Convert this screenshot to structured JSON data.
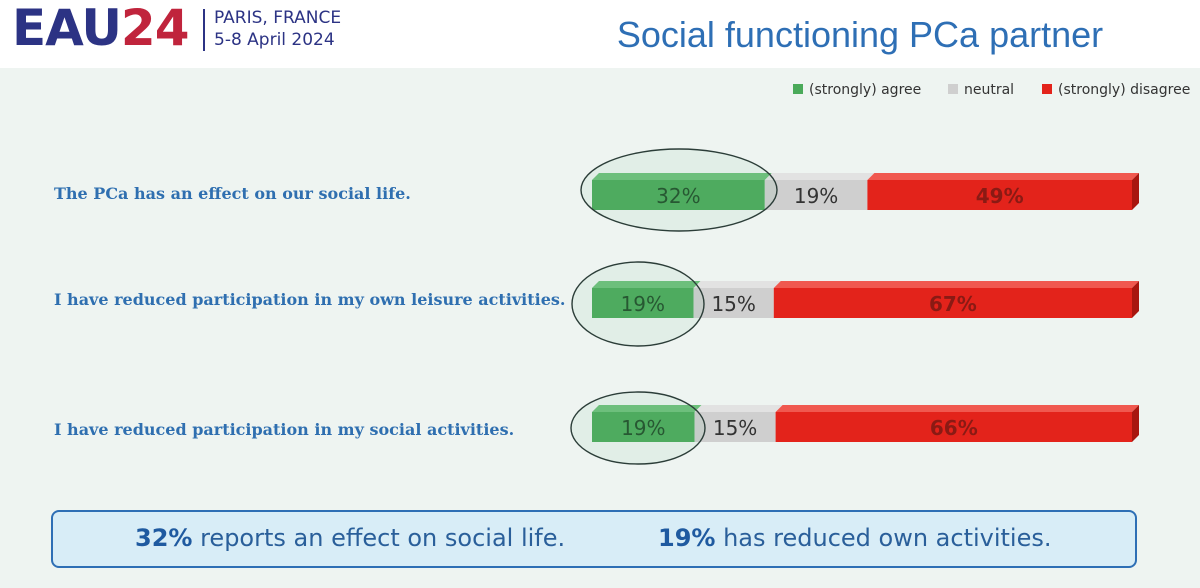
{
  "header": {
    "logo_main": "EAU",
    "logo_num": "24",
    "location": "PARIS, FRANCE",
    "dates": "5-8 April 2024",
    "title": "Social functioning PCa partner"
  },
  "colors": {
    "agree": "#4aaa5a",
    "neutral": "#cfcfcf",
    "disagree": "#e3231b",
    "title_blue": "#2e6fb5",
    "label_blue": "#2f6fb0"
  },
  "chart_data": {
    "type": "bar",
    "orientation": "horizontal",
    "stacked": true,
    "percent": true,
    "legend_position": "top-right",
    "categories": [
      "The PCa has an effect on our social life.",
      "I have reduced participation in my own leisure activities.",
      "I have reduced participation in my social activities."
    ],
    "series": [
      {
        "name": "(strongly) agree",
        "values": [
          32,
          19,
          19
        ]
      },
      {
        "name": "neutral",
        "values": [
          19,
          15,
          15
        ]
      },
      {
        "name": "(strongly) disagree",
        "values": [
          49,
          67,
          66
        ]
      }
    ],
    "data_labels": [
      [
        "32%",
        "19%",
        "49%"
      ],
      [
        "19%",
        "15%",
        "67%"
      ],
      [
        "19%",
        "15%",
        "66%"
      ]
    ]
  },
  "summary": {
    "stat1": "32%",
    "text1": "reports an effect on social life.",
    "stat2": "19%",
    "text2": "has reduced own activities."
  }
}
